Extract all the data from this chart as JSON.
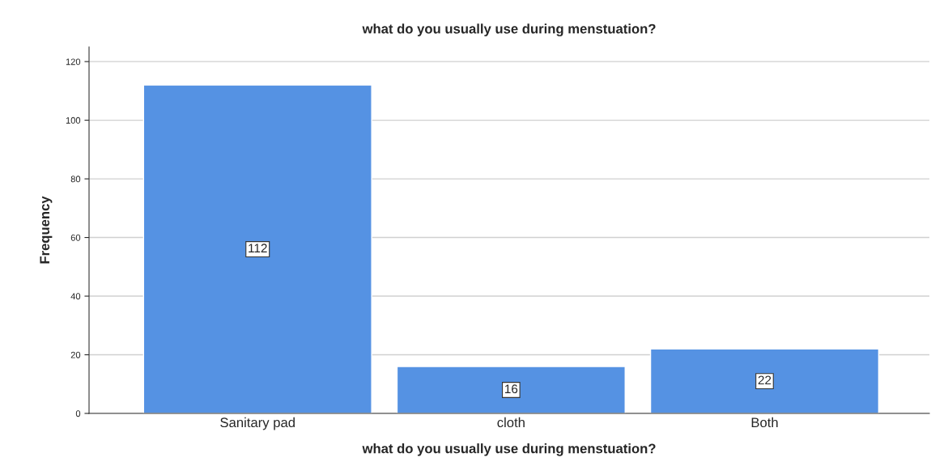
{
  "chart_data": {
    "type": "bar",
    "title": "what do you usually use during menstuation?",
    "xlabel": "what do you usually use during menstuation?",
    "ylabel": "Frequency",
    "categories": [
      "Sanitary pad",
      "cloth",
      "Both"
    ],
    "values": [
      112,
      16,
      22
    ],
    "color": "#5592e3",
    "ylim": [
      0,
      125
    ],
    "yticks": [
      0,
      20,
      40,
      60,
      80,
      100,
      120
    ],
    "grid": "y",
    "data_labels": true
  }
}
